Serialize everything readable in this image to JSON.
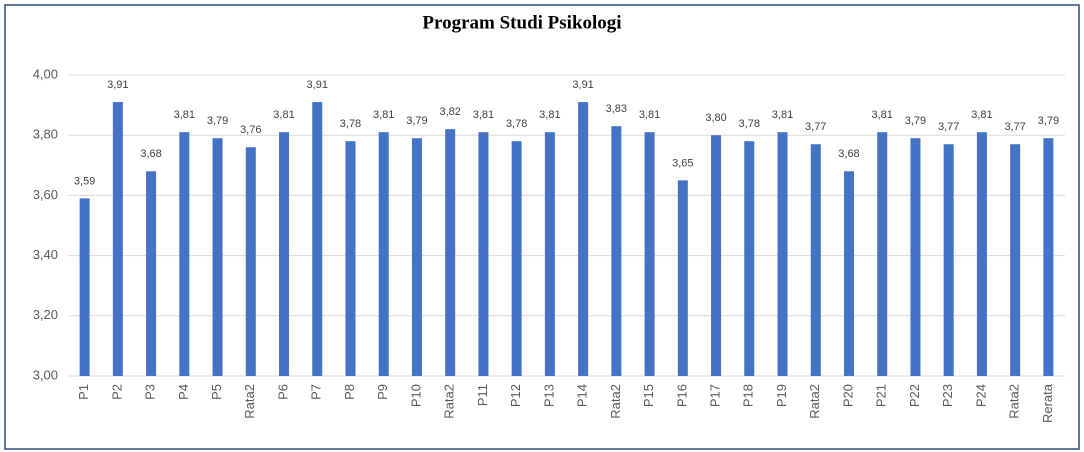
{
  "chart_data": {
    "type": "bar",
    "title": "Program Studi Psikologi",
    "categories": [
      "P1",
      "P2",
      "P3",
      "P4",
      "P5",
      "Rata2",
      "P6",
      "P7",
      "P8",
      "P9",
      "P10",
      "Rata2",
      "P11",
      "P12",
      "P13",
      "P14",
      "Rata2",
      "P15",
      "P16",
      "P17",
      "P18",
      "P19",
      "Rata2",
      "P20",
      "P21",
      "P22",
      "P23",
      "P24",
      "Rata2",
      "Rerata"
    ],
    "values": [
      3.59,
      3.91,
      3.68,
      3.81,
      3.79,
      3.76,
      3.81,
      3.91,
      3.78,
      3.81,
      3.79,
      3.82,
      3.81,
      3.78,
      3.81,
      3.91,
      3.83,
      3.81,
      3.65,
      3.8,
      3.78,
      3.81,
      3.77,
      3.68,
      3.81,
      3.79,
      3.77,
      3.81,
      3.77,
      3.79
    ],
    "value_labels": [
      "3,59",
      "3,91",
      "3,68",
      "3,81",
      "3,79",
      "3,76",
      "3,81",
      "3,91",
      "3,78",
      "3,81",
      "3,79",
      "3,82",
      "3,81",
      "3,78",
      "3,81",
      "3,91",
      "3,83",
      "3,81",
      "3,65",
      "3,80",
      "3,78",
      "3,81",
      "3,77",
      "3,68",
      "3,81",
      "3,79",
      "3,77",
      "3,81",
      "3,77",
      "3,79"
    ],
    "color": "#4472c4",
    "ylim": [
      3,
      4
    ],
    "yticks": [
      {
        "value": 3,
        "label": "3,00"
      },
      {
        "value": 3.2,
        "label": "3,20"
      },
      {
        "value": 3.4,
        "label": "3,40"
      },
      {
        "value": 3.6,
        "label": "3,60"
      },
      {
        "value": 3.8,
        "label": "3,80"
      },
      {
        "value": 4,
        "label": "4,00"
      }
    ],
    "grid": true
  }
}
